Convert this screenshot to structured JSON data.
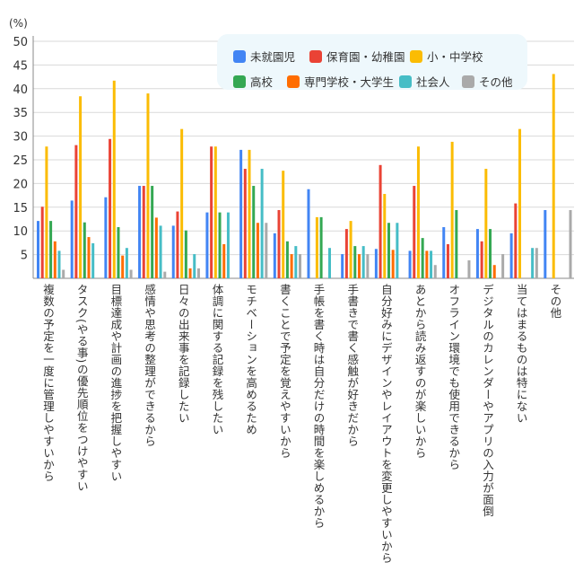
{
  "chart_data": {
    "type": "bar",
    "unit_label": "(%)",
    "ylim": [
      0,
      50
    ],
    "yticks": [
      5,
      10,
      15,
      20,
      25,
      30,
      35,
      40,
      45,
      50
    ],
    "grid": true,
    "legend_placement": "top-center",
    "categories": [
      "複数の予定を一度に管理しやすいから",
      "タスク(やる事)の優先順位をつけやすい",
      "目標達成や計画の進捗を把握しやすい",
      "感情や思考の整理ができるから",
      "日々の出来事を記録したい",
      "体調に関する記録を残したい",
      "モチベーションを高めるため",
      "書くことで予定を覚えやすいから",
      "手帳を書く時は自分だけの時間を楽しめるから",
      "手書きで書く感触が好きだから",
      "自分好みにデザインやレイアウトを変更しやすいから",
      "あとから読み返すのが楽しいから",
      "オフライン環境でも使用できるから",
      "デジタルのカレンダーやアプリの入力が面倒",
      "当てはまるものは特にない",
      "その他"
    ],
    "series": [
      {
        "name": "未就園児",
        "color": "#4285f4",
        "values": [
          12.1,
          16.4,
          17.1,
          19.5,
          11.1,
          13.9,
          27.1,
          9.5,
          18.8,
          5.1,
          6.2,
          5.8,
          10.8,
          10.4,
          9.5,
          14.4
        ]
      },
      {
        "name": "保育園・幼稚園",
        "color": "#ea4335",
        "values": [
          15.1,
          28.1,
          29.4,
          19.5,
          14.1,
          27.8,
          23.1,
          14.4,
          0,
          10.4,
          23.9,
          19.5,
          7.2,
          7.8,
          15.8,
          0
        ]
      },
      {
        "name": "小・中学校",
        "color": "#fbbc04",
        "values": [
          27.8,
          38.4,
          41.7,
          39.0,
          31.5,
          27.8,
          27.1,
          22.7,
          12.9,
          12.1,
          17.8,
          27.8,
          28.8,
          23.1,
          31.5,
          43.1
        ]
      },
      {
        "name": "高校",
        "color": "#34a853",
        "values": [
          12.1,
          11.8,
          10.8,
          19.5,
          10.1,
          13.9,
          19.5,
          7.8,
          12.9,
          6.8,
          11.7,
          8.5,
          14.4,
          10.4,
          0,
          0
        ]
      },
      {
        "name": "専門学校・大学生",
        "color": "#ff6d01",
        "values": [
          7.8,
          8.7,
          4.8,
          12.8,
          2.1,
          7.2,
          11.7,
          5.1,
          0,
          5.1,
          6.0,
          5.8,
          0,
          2.8,
          0,
          0
        ]
      },
      {
        "name": "社会人",
        "color": "#46bdc6",
        "values": [
          5.8,
          7.4,
          6.4,
          11.1,
          5.1,
          13.9,
          23.1,
          6.8,
          6.4,
          6.8,
          11.7,
          5.8,
          0,
          0,
          6.4,
          0
        ]
      },
      {
        "name": "その他",
        "color": "#aaaaaa",
        "values": [
          1.8,
          0,
          1.8,
          1.4,
          2.1,
          0,
          11.7,
          5.1,
          0,
          5.1,
          0,
          2.8,
          3.8,
          5.1,
          6.4,
          14.4
        ]
      }
    ]
  }
}
